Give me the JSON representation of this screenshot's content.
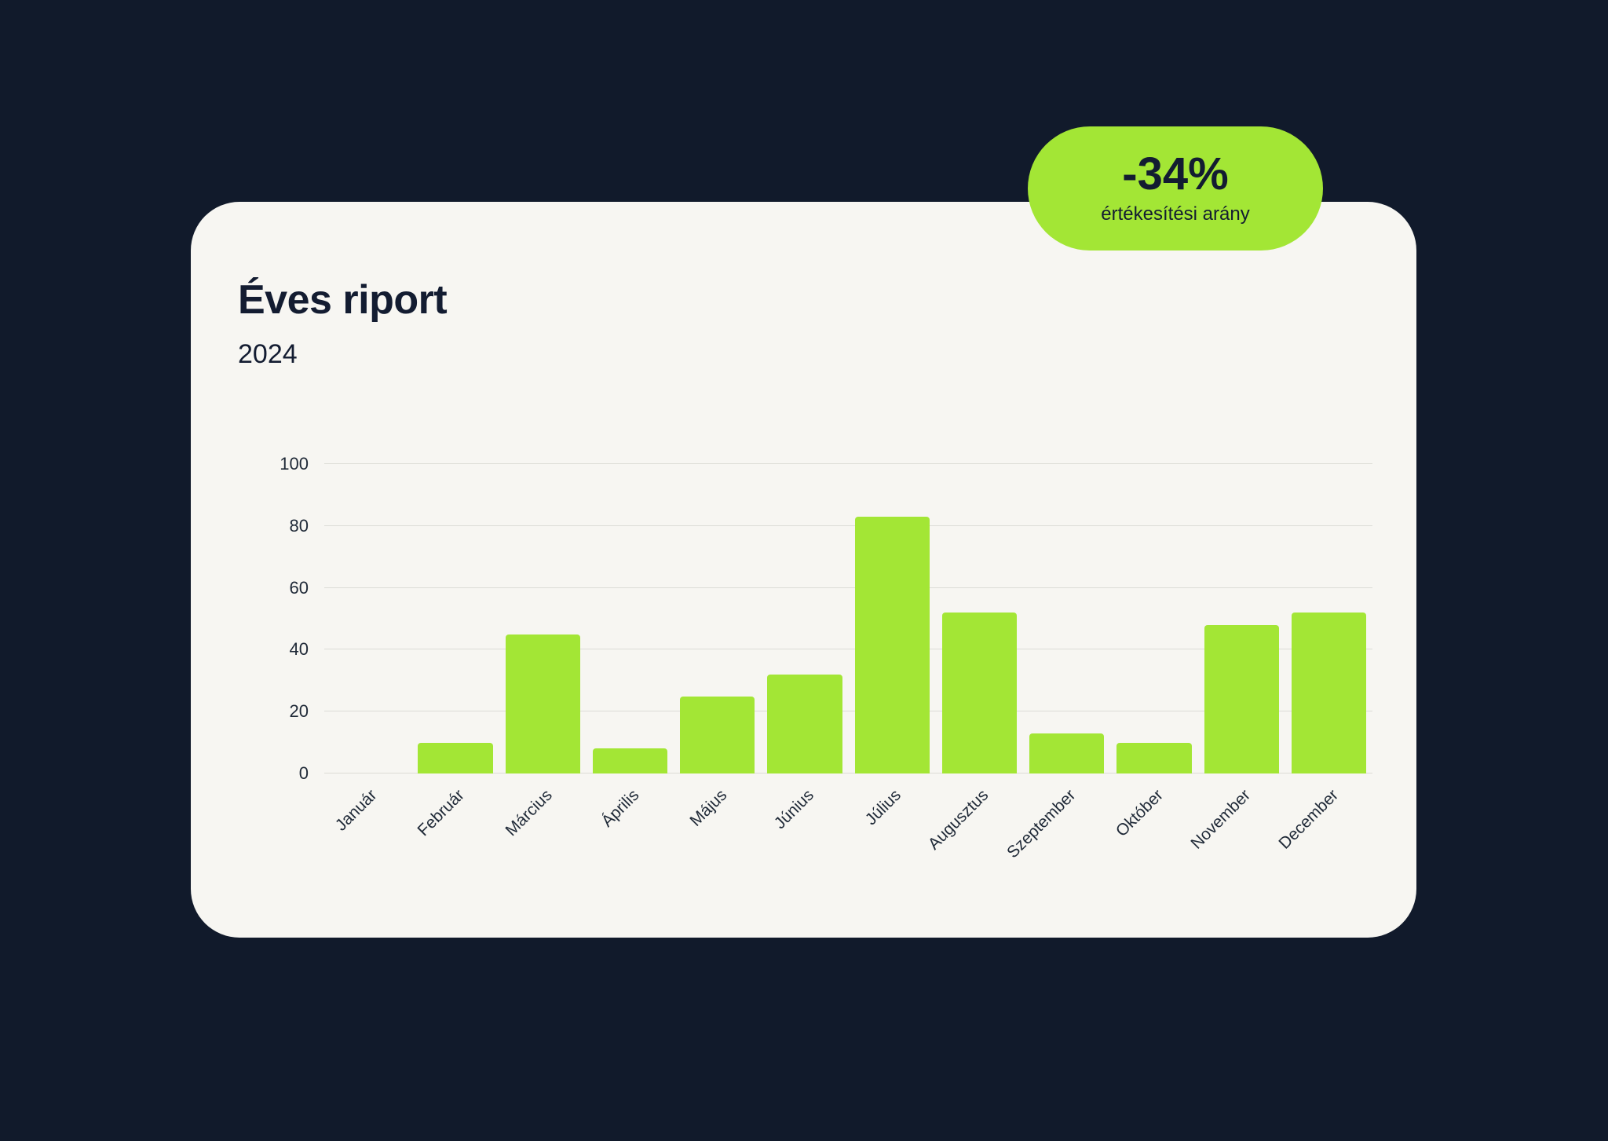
{
  "badge": {
    "value": "-34%",
    "label": "értékesítési arány"
  },
  "report": {
    "title": "Éves riport",
    "subtitle": "2024"
  },
  "colors": {
    "background": "#111a2b",
    "card": "#f7f6f2",
    "bar": "#a3e635",
    "badge": "#a3e635",
    "gridline": "#dcdcd6",
    "text_dark": "#131c31",
    "axis_text": "#1f2937"
  },
  "chart_data": {
    "type": "bar",
    "title": "Éves riport",
    "subtitle": "2024",
    "categories": [
      "Január",
      "Február",
      "Március",
      "Április",
      "Május",
      "Június",
      "Július",
      "Augusztus",
      "Szeptember",
      "Október",
      "November",
      "December"
    ],
    "values": [
      0,
      10,
      45,
      8,
      25,
      32,
      83,
      52,
      13,
      10,
      48,
      52
    ],
    "xlabel": "",
    "ylabel": "",
    "ylim": [
      0,
      100
    ],
    "yticks": [
      0,
      20,
      40,
      60,
      80,
      100
    ],
    "grid": true,
    "legend": false,
    "bar_color": "#a3e635"
  }
}
